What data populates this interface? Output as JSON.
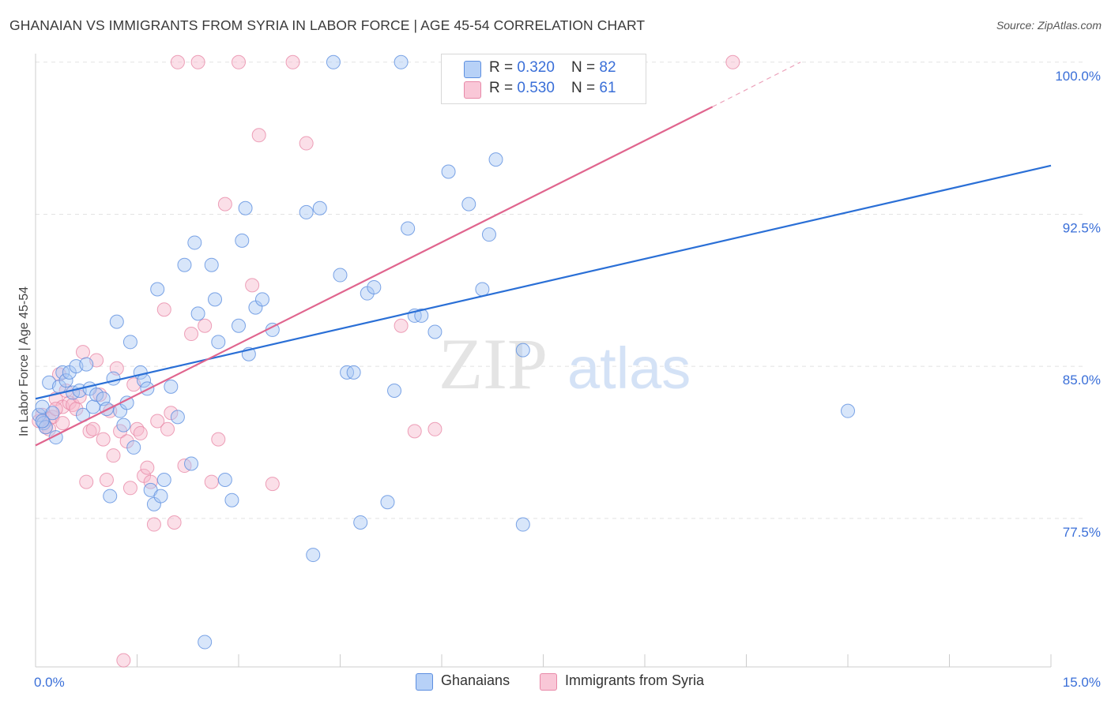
{
  "title": "GHANAIAN VS IMMIGRANTS FROM SYRIA IN LABOR FORCE | AGE 45-54 CORRELATION CHART",
  "source": "Source: ZipAtlas.com",
  "watermark": {
    "zip": "ZIP",
    "atlas": "atlas"
  },
  "legend": {
    "r_label": "R = ",
    "n_label": "N = ",
    "series": [
      {
        "name": "Ghanaians",
        "r": "0.320",
        "n": "82"
      },
      {
        "name": "Immigrants from Syria",
        "r": "0.530",
        "n": "61"
      }
    ]
  },
  "colors": {
    "blue_fill": "#a9c8f5",
    "blue_stroke": "#5d8fe0",
    "blue_line": "#2a6fd6",
    "pink_fill": "#f7b9cd",
    "pink_stroke": "#e889a8",
    "pink_line": "#e0658e",
    "axis_text": "#3a6fd8",
    "grid": "#e2e2e2"
  },
  "chart_data": {
    "type": "scatter",
    "title": "GHANAIAN VS IMMIGRANTS FROM SYRIA IN LABOR FORCE | AGE 45-54 CORRELATION CHART",
    "xlabel": "",
    "ylabel": "In Labor Force | Age 45-54",
    "xlim": [
      0,
      15
    ],
    "ylim": [
      70.0,
      101.0
    ],
    "x_tick_labels": [
      {
        "value": 0,
        "label": "0.0%"
      },
      {
        "value": 15,
        "label": "15.0%"
      }
    ],
    "y_tick_labels": [
      {
        "value": 100.0,
        "label": "100.0%"
      },
      {
        "value": 92.5,
        "label": "92.5%"
      },
      {
        "value": 85.0,
        "label": "85.0%"
      },
      {
        "value": 77.5,
        "label": "77.5%"
      }
    ],
    "series": [
      {
        "name": "Ghanaians",
        "trend": {
          "x0": 0.0,
          "y0": 83.4,
          "x1": 15.0,
          "y1": 94.9
        },
        "points": [
          [
            0.05,
            82.6
          ],
          [
            0.1,
            83.0
          ],
          [
            0.12,
            82.2
          ],
          [
            0.15,
            82.0
          ],
          [
            0.2,
            84.2
          ],
          [
            0.25,
            82.7
          ],
          [
            0.3,
            81.5
          ],
          [
            0.35,
            84.0
          ],
          [
            0.4,
            84.7
          ],
          [
            0.45,
            84.3
          ],
          [
            0.5,
            84.7
          ],
          [
            0.55,
            83.7
          ],
          [
            0.6,
            85.0
          ],
          [
            0.65,
            83.8
          ],
          [
            0.7,
            82.6
          ],
          [
            0.75,
            85.1
          ],
          [
            0.8,
            83.9
          ],
          [
            0.85,
            83.0
          ],
          [
            0.9,
            83.6
          ],
          [
            1.0,
            83.4
          ],
          [
            1.05,
            82.9
          ],
          [
            1.1,
            78.6
          ],
          [
            1.15,
            84.4
          ],
          [
            1.2,
            87.2
          ],
          [
            1.25,
            82.8
          ],
          [
            1.3,
            82.1
          ],
          [
            1.35,
            83.2
          ],
          [
            1.4,
            86.2
          ],
          [
            1.45,
            81.0
          ],
          [
            1.55,
            84.7
          ],
          [
            1.6,
            84.3
          ],
          [
            1.65,
            83.9
          ],
          [
            1.7,
            78.9
          ],
          [
            1.75,
            78.2
          ],
          [
            1.8,
            88.8
          ],
          [
            1.85,
            78.6
          ],
          [
            1.9,
            79.4
          ],
          [
            2.0,
            84.0
          ],
          [
            2.1,
            82.5
          ],
          [
            2.2,
            90.0
          ],
          [
            2.3,
            80.2
          ],
          [
            2.35,
            91.1
          ],
          [
            2.4,
            87.6
          ],
          [
            2.5,
            71.4
          ],
          [
            2.6,
            90.0
          ],
          [
            2.65,
            88.3
          ],
          [
            2.7,
            86.2
          ],
          [
            2.8,
            79.4
          ],
          [
            2.9,
            78.4
          ],
          [
            3.0,
            87.0
          ],
          [
            3.05,
            91.2
          ],
          [
            3.1,
            92.8
          ],
          [
            3.15,
            85.6
          ],
          [
            3.25,
            87.9
          ],
          [
            3.35,
            88.3
          ],
          [
            3.5,
            86.8
          ],
          [
            4.0,
            92.6
          ],
          [
            4.1,
            75.7
          ],
          [
            4.2,
            92.8
          ],
          [
            4.4,
            100.0
          ],
          [
            4.5,
            89.5
          ],
          [
            4.6,
            84.7
          ],
          [
            4.7,
            84.7
          ],
          [
            4.8,
            77.3
          ],
          [
            4.9,
            88.6
          ],
          [
            5.0,
            88.9
          ],
          [
            5.2,
            78.3
          ],
          [
            5.3,
            83.8
          ],
          [
            5.4,
            100.0
          ],
          [
            5.5,
            91.8
          ],
          [
            5.6,
            87.5
          ],
          [
            5.7,
            87.5
          ],
          [
            5.9,
            86.7
          ],
          [
            6.1,
            94.6
          ],
          [
            6.4,
            93.0
          ],
          [
            6.6,
            88.8
          ],
          [
            6.7,
            91.5
          ],
          [
            6.8,
            95.2
          ],
          [
            7.2,
            85.8
          ],
          [
            7.2,
            77.2
          ],
          [
            12.0,
            82.8
          ],
          [
            0.1,
            82.3
          ]
        ]
      },
      {
        "name": "Immigrants from Syria",
        "trend": {
          "x0": 0.0,
          "y0": 81.1,
          "x1": 10.0,
          "y1": 97.8,
          "dashed_to": {
            "x": 11.3,
            "y": 100.0
          }
        },
        "points": [
          [
            0.05,
            82.3
          ],
          [
            0.1,
            82.6
          ],
          [
            0.15,
            82.0
          ],
          [
            0.2,
            82.4
          ],
          [
            0.25,
            82.5
          ],
          [
            0.3,
            83.4
          ],
          [
            0.35,
            84.6
          ],
          [
            0.4,
            83.0
          ],
          [
            0.45,
            83.8
          ],
          [
            0.5,
            83.2
          ],
          [
            0.55,
            83.1
          ],
          [
            0.6,
            82.9
          ],
          [
            0.65,
            83.5
          ],
          [
            0.7,
            85.7
          ],
          [
            0.75,
            79.3
          ],
          [
            0.8,
            81.8
          ],
          [
            0.85,
            81.9
          ],
          [
            0.9,
            85.3
          ],
          [
            0.95,
            83.6
          ],
          [
            1.0,
            81.4
          ],
          [
            1.05,
            79.4
          ],
          [
            1.1,
            82.8
          ],
          [
            1.15,
            80.6
          ],
          [
            1.2,
            84.9
          ],
          [
            1.25,
            81.8
          ],
          [
            1.3,
            70.5
          ],
          [
            1.35,
            81.3
          ],
          [
            1.4,
            79.0
          ],
          [
            1.45,
            84.1
          ],
          [
            1.5,
            81.9
          ],
          [
            1.55,
            81.7
          ],
          [
            1.6,
            79.6
          ],
          [
            1.65,
            80.0
          ],
          [
            1.7,
            79.3
          ],
          [
            1.75,
            77.2
          ],
          [
            1.8,
            82.3
          ],
          [
            1.9,
            87.8
          ],
          [
            1.95,
            81.9
          ],
          [
            2.0,
            82.7
          ],
          [
            2.05,
            77.3
          ],
          [
            2.1,
            100.0
          ],
          [
            2.2,
            80.1
          ],
          [
            2.3,
            86.6
          ],
          [
            2.4,
            100.0
          ],
          [
            2.5,
            87.0
          ],
          [
            2.6,
            79.3
          ],
          [
            2.7,
            81.4
          ],
          [
            2.8,
            93.0
          ],
          [
            3.0,
            100.0
          ],
          [
            3.2,
            89.0
          ],
          [
            3.3,
            96.4
          ],
          [
            3.5,
            79.2
          ],
          [
            3.8,
            100.0
          ],
          [
            4.0,
            96.0
          ],
          [
            5.4,
            87.0
          ],
          [
            5.6,
            81.8
          ],
          [
            5.9,
            81.9
          ],
          [
            10.3,
            100.0
          ],
          [
            0.2,
            81.9
          ],
          [
            0.3,
            82.9
          ],
          [
            0.4,
            82.2
          ]
        ]
      }
    ]
  }
}
